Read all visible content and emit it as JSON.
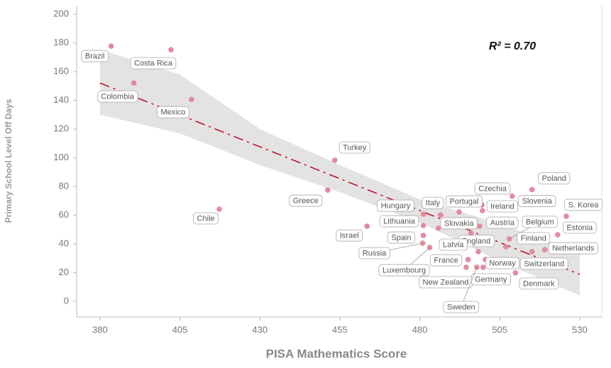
{
  "chart_data": {
    "type": "scatter",
    "x_label": "PISA Mathematics Score",
    "y_label": "Primary School Level Off Days",
    "annotation": "R² = 0.70",
    "xlim": [
      372.7,
      536.9
    ],
    "ylim": [
      -10.9,
      206
    ],
    "xticks": [
      380,
      405,
      430,
      455,
      480,
      505,
      530
    ],
    "yticks": [
      0,
      20,
      40,
      60,
      80,
      100,
      120,
      140,
      160,
      180,
      200
    ],
    "grid": false,
    "point_color": "#e28b9c",
    "points": {
      "labels": [
        "Brazil",
        "Costa Rica",
        "Colombia",
        "Mexico",
        "Chile",
        "Turkey",
        "Greece",
        "Israel",
        "Hungary",
        "Italy",
        "Portugal",
        "Czechia",
        "Ireland",
        "Slovenia",
        "Poland",
        "S. Korea",
        "Estonia",
        "Netherlands",
        "Switzerland",
        "Belgium",
        "Finland",
        "England",
        "Latvia",
        "Lithuania",
        "Slovakia",
        "Austria",
        "Spain",
        "Russia",
        "Luxembourg",
        "France",
        "New Zealand",
        "Germany",
        "Norway",
        "Denmark",
        "Sweden"
      ],
      "x": [
        383.5,
        402.2,
        390.6,
        408.6,
        417.3,
        453.4,
        451.2,
        463.5,
        481.1,
        486.5,
        492.3,
        499.4,
        499.6,
        508.9,
        515.1,
        525.8,
        523.1,
        519.1,
        515.1,
        508.0,
        506.9,
        498.3,
        496.0,
        481.1,
        485.8,
        498.7,
        481.1,
        480.9,
        483.1,
        495.1,
        494.5,
        499.8,
        500.5,
        509.9,
        497.8
      ],
      "y": [
        177.8,
        175.3,
        152.1,
        140.7,
        64.2,
        98.3,
        77.5,
        52.3,
        60.7,
        60.2,
        62.2,
        67.2,
        63.2,
        73.3,
        77.8,
        59.3,
        46.4,
        36.0,
        34.6,
        43.5,
        38.0,
        34.6,
        47.4,
        52.8,
        50.9,
        52.3,
        45.9,
        40.5,
        37.5,
        29.1,
        23.7,
        23.7,
        29.1,
        19.8,
        23.7
      ]
    },
    "fit": {
      "color": "#c0142c",
      "x": [
        380,
        530
      ],
      "y": [
        152.1,
        18.8
      ]
    },
    "band": {
      "color": "#e3e3e3",
      "x": [
        380,
        405,
        430,
        455,
        480,
        505,
        530
      ],
      "upper": [
        175.3,
        158,
        120,
        95,
        71,
        54,
        34
      ],
      "lower": [
        130,
        117,
        95,
        76,
        55,
        28,
        4
      ]
    }
  }
}
